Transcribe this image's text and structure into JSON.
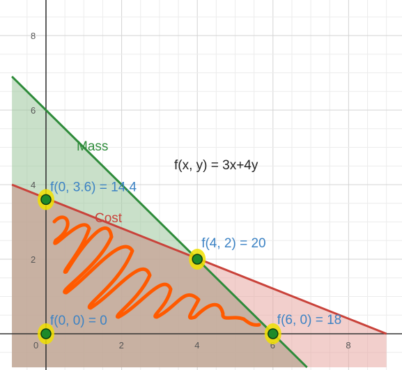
{
  "chart_data": {
    "type": "line",
    "xlim": [
      -0.9,
      9.0
    ],
    "ylim": [
      -0.9,
      8.4
    ],
    "grid": true,
    "x_ticks": [
      {
        "value": 0,
        "label": "0"
      },
      {
        "value": 2,
        "label": "2"
      },
      {
        "value": 4,
        "label": "4"
      },
      {
        "value": 6,
        "label": "6"
      },
      {
        "value": 8,
        "label": "8"
      }
    ],
    "y_ticks": [
      {
        "value": 2,
        "label": "2"
      },
      {
        "value": 4,
        "label": "4"
      },
      {
        "value": 6,
        "label": "6"
      },
      {
        "value": 8,
        "label": "8"
      }
    ],
    "series": [
      {
        "name": "Mass",
        "color": "#2e8b3a",
        "fill": "#9cc79c",
        "points": [
          [
            -0.9,
            6.9
          ],
          [
            6.9,
            -0.9
          ]
        ]
      },
      {
        "name": "Cost",
        "color": "#c9423a",
        "fill": "#e8a7a3",
        "points": [
          [
            -0.9,
            4.0
          ],
          [
            9.0,
            0.0
          ]
        ]
      }
    ],
    "objective_label": "f(x, y) = 3x+4y",
    "points": [
      {
        "x": 0,
        "y": 3.6,
        "label": "f(0, 3.6) = 14.4"
      },
      {
        "x": 4,
        "y": 2,
        "label": "f(4, 2) = 20"
      },
      {
        "x": 0,
        "y": 0,
        "label": "f(0, 0) = 0"
      },
      {
        "x": 6,
        "y": 0,
        "label": "f(6, 0) = 18"
      }
    ],
    "colors": {
      "label": "#3b82c4",
      "point": "#1e8a2a",
      "highlight": "#f0e000",
      "scribble": "#ff5a00",
      "overlap": "#b9a494"
    }
  }
}
